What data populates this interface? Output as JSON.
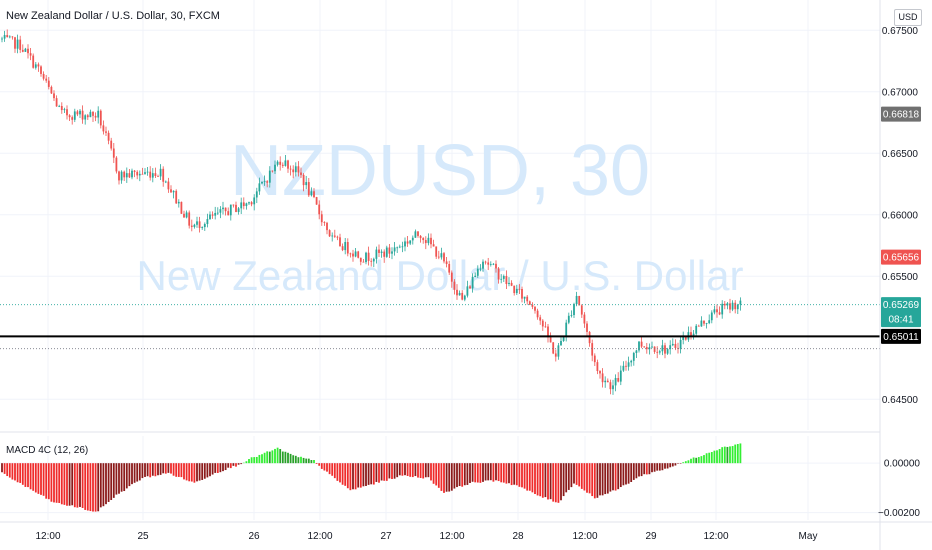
{
  "header": {
    "title": "New Zealand Dollar / U.S. Dollar, 30, FXCM",
    "currency": "USD"
  },
  "watermark": {
    "line1": "NZDUSD, 30",
    "line2": "New Zealand Dollar / U.S. Dollar"
  },
  "colors": {
    "up": "#26a69a",
    "down": "#ef5350",
    "macd_pos": "#33ff33",
    "macd_neg": "#ff2222",
    "watermark": "#cfe6fb",
    "hline": "#000000"
  },
  "chart_data": [
    {
      "type": "candlestick",
      "ylim": [
        0.6425,
        0.676
      ],
      "y_ticks": [
        "0.67500",
        "0.67000",
        "0.66500",
        "0.66000",
        "0.65500",
        "0.64500"
      ],
      "x_ticks": [
        "12:00",
        "25",
        "26",
        "12:00",
        "27",
        "12:00",
        "28",
        "12:00",
        "29",
        "12:00",
        "May"
      ],
      "path_anchors": [
        {
          "t": 0,
          "v": 0.6743
        },
        {
          "t": 8,
          "v": 0.6738
        },
        {
          "t": 15,
          "v": 0.6718
        },
        {
          "t": 24,
          "v": 0.6682
        },
        {
          "t": 38,
          "v": 0.6681
        },
        {
          "t": 46,
          "v": 0.6632
        },
        {
          "t": 62,
          "v": 0.6635
        },
        {
          "t": 74,
          "v": 0.659
        },
        {
          "t": 84,
          "v": 0.66
        },
        {
          "t": 96,
          "v": 0.661
        },
        {
          "t": 108,
          "v": 0.6645
        },
        {
          "t": 116,
          "v": 0.6632
        },
        {
          "t": 128,
          "v": 0.658
        },
        {
          "t": 140,
          "v": 0.6565
        },
        {
          "t": 150,
          "v": 0.657
        },
        {
          "t": 162,
          "v": 0.6585
        },
        {
          "t": 170,
          "v": 0.6565
        },
        {
          "t": 178,
          "v": 0.653
        },
        {
          "t": 186,
          "v": 0.6565
        },
        {
          "t": 196,
          "v": 0.6543
        },
        {
          "t": 206,
          "v": 0.6525
        },
        {
          "t": 214,
          "v": 0.6485
        },
        {
          "t": 222,
          "v": 0.6535
        },
        {
          "t": 230,
          "v": 0.6472
        },
        {
          "t": 236,
          "v": 0.646
        },
        {
          "t": 246,
          "v": 0.6495
        },
        {
          "t": 258,
          "v": 0.649
        },
        {
          "t": 268,
          "v": 0.6508
        },
        {
          "t": 276,
          "v": 0.6522
        },
        {
          "t": 284,
          "v": 0.6528
        }
      ],
      "horizontal_line": 0.65011,
      "dotted_lines": [
        0.65269,
        0.64911
      ],
      "price_labels": [
        {
          "value": 0.66818,
          "text": "0.66818",
          "color": "#707070"
        },
        {
          "value": 0.65656,
          "text": "0.65656",
          "color": "#ef5350"
        },
        {
          "value": 0.65269,
          "text": "0.65269",
          "color": "#26a69a"
        },
        {
          "value": 0.65011,
          "text": "0.65011",
          "color": "#000000"
        }
      ],
      "countdown": "08:41"
    },
    {
      "type": "bar",
      "title": "MACD 4C (12, 26)",
      "ylim": [
        -0.0023,
        0.0011
      ],
      "y_ticks": [
        "0.00000",
        "−0.00200"
      ],
      "macd_anchors": [
        {
          "t": 0,
          "v": -0.0004
        },
        {
          "t": 10,
          "v": -0.001
        },
        {
          "t": 20,
          "v": -0.0016
        },
        {
          "t": 30,
          "v": -0.0018
        },
        {
          "t": 36,
          "v": -0.002
        },
        {
          "t": 44,
          "v": -0.0013
        },
        {
          "t": 54,
          "v": -0.0006
        },
        {
          "t": 64,
          "v": -0.0004
        },
        {
          "t": 74,
          "v": -0.0008
        },
        {
          "t": 82,
          "v": -0.0004
        },
        {
          "t": 90,
          "v": -0.0001
        },
        {
          "t": 96,
          "v": 0.0002
        },
        {
          "t": 106,
          "v": 0.0006
        },
        {
          "t": 112,
          "v": 0.0003
        },
        {
          "t": 120,
          "v": 0.0001
        },
        {
          "t": 124,
          "v": -0.0003
        },
        {
          "t": 134,
          "v": -0.0011
        },
        {
          "t": 144,
          "v": -0.0008
        },
        {
          "t": 154,
          "v": -0.0005
        },
        {
          "t": 164,
          "v": -0.0006
        },
        {
          "t": 170,
          "v": -0.0012
        },
        {
          "t": 180,
          "v": -0.0008
        },
        {
          "t": 190,
          "v": -0.0007
        },
        {
          "t": 198,
          "v": -0.0009
        },
        {
          "t": 206,
          "v": -0.0013
        },
        {
          "t": 214,
          "v": -0.0016
        },
        {
          "t": 220,
          "v": -0.0008
        },
        {
          "t": 228,
          "v": -0.0014
        },
        {
          "t": 236,
          "v": -0.0011
        },
        {
          "t": 246,
          "v": -0.0005
        },
        {
          "t": 256,
          "v": -0.0002
        },
        {
          "t": 266,
          "v": 0.0002
        },
        {
          "t": 276,
          "v": 0.0006
        },
        {
          "t": 284,
          "v": 0.0008
        }
      ]
    }
  ]
}
